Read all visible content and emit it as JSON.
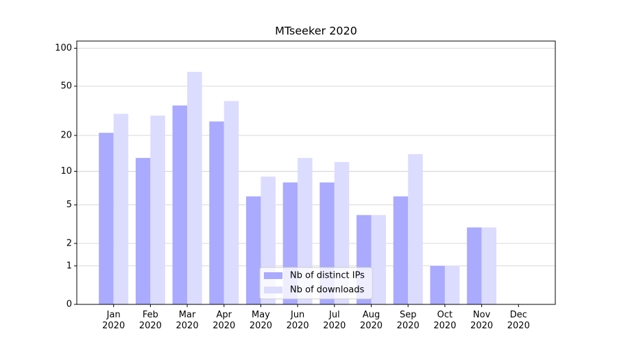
{
  "chart_data": {
    "type": "bar",
    "title": "MTseeker 2020",
    "categories": [
      "Jan\n2020",
      "Feb\n2020",
      "Mar\n2020",
      "Apr\n2020",
      "May\n2020",
      "Jun\n2020",
      "Jul\n2020",
      "Aug\n2020",
      "Sep\n2020",
      "Oct\n2020",
      "Nov\n2020",
      "Dec\n2020"
    ],
    "series": [
      {
        "name": "Nb of distinct IPs",
        "color": "#aaaaff",
        "values": [
          21,
          13,
          35,
          26,
          6,
          8,
          8,
          4,
          6,
          1,
          3,
          0
        ]
      },
      {
        "name": "Nb of downloads",
        "color": "#dcdcff",
        "values": [
          30,
          29,
          65,
          38,
          9,
          13,
          12,
          4,
          14,
          1,
          3,
          0
        ]
      }
    ],
    "yscale": "log1p",
    "ylim": [
      0,
      114
    ],
    "yticks": [
      0,
      1,
      2,
      5,
      10,
      20,
      50,
      100
    ],
    "grid": true,
    "legend": "lower center"
  }
}
